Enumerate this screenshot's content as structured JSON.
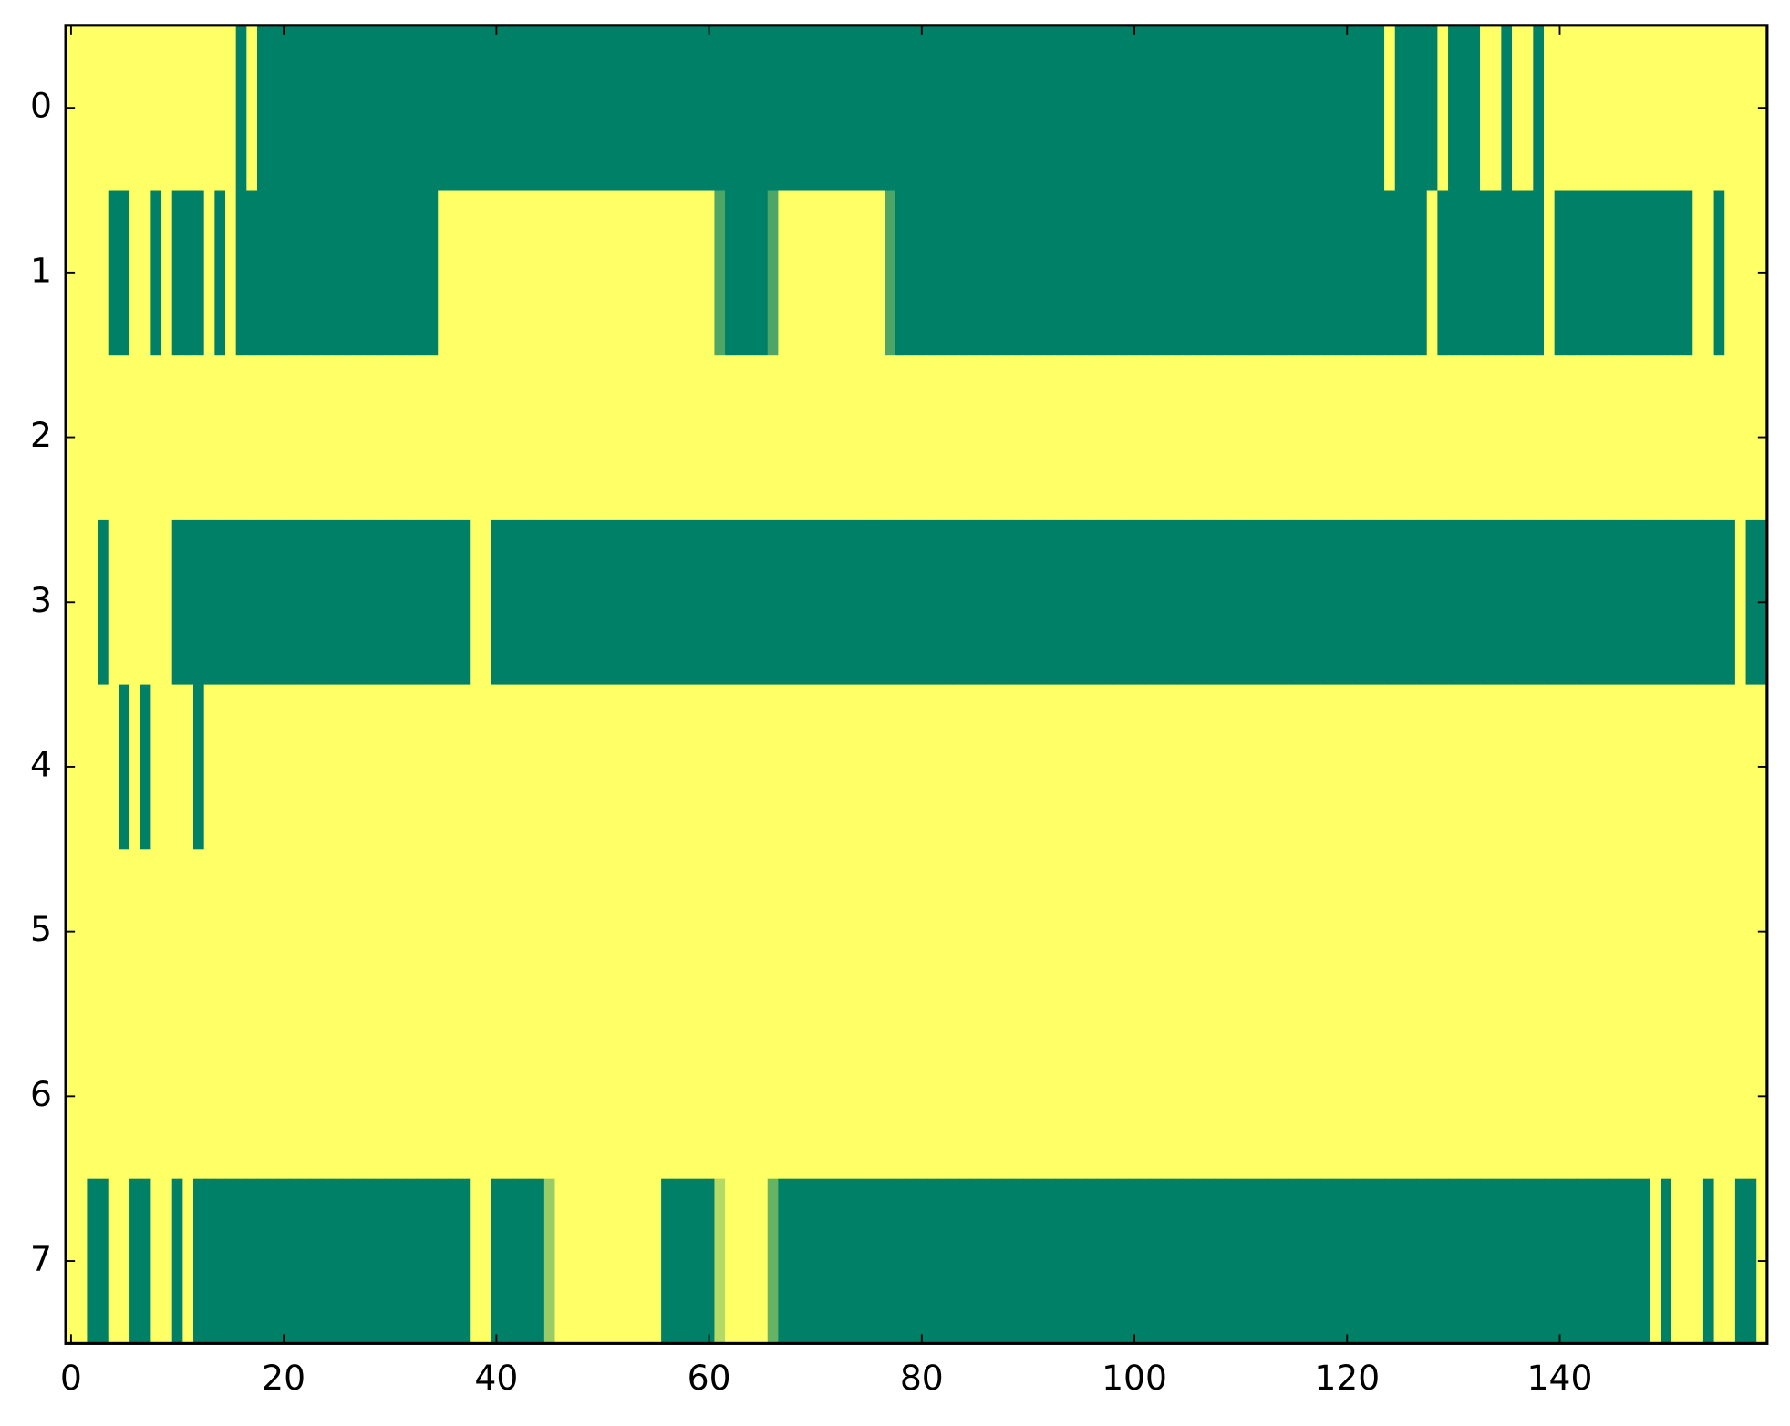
{
  "chart_data": {
    "type": "heatmap",
    "xlim": [
      -0.5,
      159.5
    ],
    "ylim": [
      7.5,
      -0.5
    ],
    "xticks": [
      0,
      20,
      40,
      60,
      80,
      100,
      120,
      140
    ],
    "yticks": [
      0,
      1,
      2,
      3,
      4,
      5,
      6,
      7
    ],
    "color_low": "#008066",
    "color_high": "#ffff66",
    "values": [
      [
        1,
        1,
        1,
        1,
        1,
        1,
        1,
        1,
        1,
        1,
        1,
        1,
        1,
        1,
        1,
        1,
        0,
        1,
        0,
        0,
        0,
        0,
        0,
        0,
        0,
        0,
        0,
        0,
        0,
        0,
        0,
        0,
        0,
        0,
        0,
        0,
        0,
        0,
        0,
        0,
        0,
        0,
        0,
        0,
        0,
        0,
        0,
        0,
        0,
        0,
        0,
        0,
        0,
        0,
        0,
        0,
        0,
        0,
        0,
        0,
        0,
        0,
        0,
        0,
        0,
        0,
        0,
        0,
        0,
        0,
        0,
        0,
        0,
        0,
        0,
        0,
        0,
        0,
        0,
        0,
        0,
        0,
        0,
        0,
        0,
        0,
        0,
        0,
        0,
        0,
        0,
        0,
        0,
        0,
        0,
        0,
        0,
        0,
        0,
        0,
        0,
        0,
        0,
        0,
        0,
        0,
        0,
        0,
        0,
        0,
        0,
        0,
        0,
        0,
        0,
        0,
        0,
        0,
        0,
        0,
        0,
        0,
        0,
        0,
        1,
        0,
        0,
        0,
        0,
        1,
        0,
        0,
        0,
        1,
        1,
        0,
        1,
        1,
        0,
        1,
        1,
        1,
        1,
        1,
        1,
        1,
        1,
        1,
        1,
        1,
        1,
        1,
        1,
        1,
        1,
        1,
        1,
        1,
        1,
        1
      ],
      [
        1,
        1,
        1,
        1,
        0,
        0,
        1,
        1,
        0,
        1,
        0,
        0,
        0,
        1,
        0,
        1,
        0,
        0,
        0,
        0,
        0,
        0,
        0,
        0,
        0,
        0,
        0,
        0,
        0,
        0,
        0,
        0,
        0,
        0,
        0,
        1,
        1,
        1,
        1,
        1,
        1,
        1,
        1,
        1,
        1,
        1,
        1,
        1,
        1,
        1,
        1,
        1,
        1,
        1,
        1,
        1,
        1,
        1,
        1,
        1,
        1,
        0.3,
        0,
        0,
        0,
        0,
        0.3,
        1,
        1,
        1,
        1,
        1,
        1,
        1,
        1,
        1,
        1,
        0.3,
        0,
        0,
        0,
        0,
        0,
        0,
        0,
        0,
        0,
        0,
        0,
        0,
        0,
        0,
        0,
        0,
        0,
        0,
        0,
        0,
        0,
        0,
        0,
        0,
        0,
        0,
        0,
        0,
        0,
        0,
        0,
        0,
        0,
        0,
        0,
        0,
        0,
        0,
        0,
        0,
        0,
        0,
        0,
        0,
        0,
        0,
        0,
        0,
        0,
        0,
        1,
        0,
        0,
        0,
        0,
        0,
        0,
        0,
        0,
        0,
        0,
        1,
        0,
        0,
        0,
        0,
        0,
        0,
        0,
        0,
        0,
        0,
        0,
        0,
        0,
        1,
        1,
        0,
        1,
        1,
        1,
        1
      ],
      [
        1,
        1,
        1,
        1,
        1,
        1,
        1,
        1,
        1,
        1,
        1,
        1,
        1,
        1,
        1,
        1,
        1,
        1,
        1,
        1,
        1,
        1,
        1,
        1,
        1,
        1,
        1,
        1,
        1,
        1,
        1,
        1,
        1,
        1,
        1,
        1,
        1,
        1,
        1,
        1,
        1,
        1,
        1,
        1,
        1,
        1,
        1,
        1,
        1,
        1,
        1,
        1,
        1,
        1,
        1,
        1,
        1,
        1,
        1,
        1,
        1,
        1,
        1,
        1,
        1,
        1,
        1,
        1,
        1,
        1,
        1,
        1,
        1,
        1,
        1,
        1,
        1,
        1,
        1,
        1,
        1,
        1,
        1,
        1,
        1,
        1,
        1,
        1,
        1,
        1,
        1,
        1,
        1,
        1,
        1,
        1,
        1,
        1,
        1,
        1,
        1,
        1,
        1,
        1,
        1,
        1,
        1,
        1,
        1,
        1,
        1,
        1,
        1,
        1,
        1,
        1,
        1,
        1,
        1,
        1,
        1,
        1,
        1,
        1,
        1,
        1,
        1,
        1,
        1,
        1,
        1,
        1,
        1,
        1,
        1,
        1,
        1,
        1,
        1,
        1,
        1,
        1,
        1,
        1,
        1,
        1,
        1,
        1,
        1,
        1,
        1,
        1,
        1,
        1,
        1,
        1,
        1,
        1,
        1,
        1
      ],
      [
        1,
        1,
        1,
        0,
        1,
        1,
        1,
        1,
        1,
        1,
        0,
        0,
        0,
        0,
        0,
        0,
        0,
        0,
        0,
        0,
        0,
        0,
        0,
        0,
        0,
        0,
        0,
        0,
        0,
        0,
        0,
        0,
        0,
        0,
        0,
        0,
        0,
        0,
        1,
        1,
        0,
        0,
        0,
        0,
        0,
        0,
        0,
        0,
        0,
        0,
        0,
        0,
        0,
        0,
        0,
        0,
        0,
        0,
        0,
        0,
        0,
        0,
        0,
        0,
        0,
        0,
        0,
        0,
        0,
        0,
        0,
        0,
        0,
        0,
        0,
        0,
        0,
        0,
        0,
        0,
        0,
        0,
        0,
        0,
        0,
        0,
        0,
        0,
        0,
        0,
        0,
        0,
        0,
        0,
        0,
        0,
        0,
        0,
        0,
        0,
        0,
        0,
        0,
        0,
        0,
        0,
        0,
        0,
        0,
        0,
        0,
        0,
        0,
        0,
        0,
        0,
        0,
        0,
        0,
        0,
        0,
        0,
        0,
        0,
        0,
        0,
        0,
        0,
        0,
        0,
        0,
        0,
        0,
        0,
        0,
        0,
        0,
        0,
        0,
        0,
        0,
        0,
        0,
        0,
        0,
        0,
        0,
        0,
        0,
        0,
        0,
        0,
        0,
        0,
        0,
        0,
        0,
        1,
        0,
        0
      ],
      [
        1,
        1,
        1,
        1,
        1,
        0,
        1,
        0,
        1,
        1,
        1,
        1,
        0,
        1,
        1,
        1,
        1,
        1,
        1,
        1,
        1,
        1,
        1,
        1,
        1,
        1,
        1,
        1,
        1,
        1,
        1,
        1,
        1,
        1,
        1,
        1,
        1,
        1,
        1,
        1,
        1,
        1,
        1,
        1,
        1,
        1,
        1,
        1,
        1,
        1,
        1,
        1,
        1,
        1,
        1,
        1,
        1,
        1,
        1,
        1,
        1,
        1,
        1,
        1,
        1,
        1,
        1,
        1,
        1,
        1,
        1,
        1,
        1,
        1,
        1,
        1,
        1,
        1,
        1,
        1,
        1,
        1,
        1,
        1,
        1,
        1,
        1,
        1,
        1,
        1,
        1,
        1,
        1,
        1,
        1,
        1,
        1,
        1,
        1,
        1,
        1,
        1,
        1,
        1,
        1,
        1,
        1,
        1,
        1,
        1,
        1,
        1,
        1,
        1,
        1,
        1,
        1,
        1,
        1,
        1,
        1,
        1,
        1,
        1,
        1,
        1,
        1,
        1,
        1,
        1,
        1,
        1,
        1,
        1,
        1,
        1,
        1,
        1,
        1,
        1,
        1,
        1,
        1,
        1,
        1,
        1,
        1,
        1,
        1,
        1,
        1,
        1,
        1,
        1,
        1,
        1,
        1,
        1,
        1,
        1
      ],
      [
        1,
        1,
        1,
        1,
        1,
        1,
        1,
        1,
        1,
        1,
        1,
        1,
        1,
        1,
        1,
        1,
        1,
        1,
        1,
        1,
        1,
        1,
        1,
        1,
        1,
        1,
        1,
        1,
        1,
        1,
        1,
        1,
        1,
        1,
        1,
        1,
        1,
        1,
        1,
        1,
        1,
        1,
        1,
        1,
        1,
        1,
        1,
        1,
        1,
        1,
        1,
        1,
        1,
        1,
        1,
        1,
        1,
        1,
        1,
        1,
        1,
        1,
        1,
        1,
        1,
        1,
        1,
        1,
        1,
        1,
        1,
        1,
        1,
        1,
        1,
        1,
        1,
        1,
        1,
        1,
        1,
        1,
        1,
        1,
        1,
        1,
        1,
        1,
        1,
        1,
        1,
        1,
        1,
        1,
        1,
        1,
        1,
        1,
        1,
        1,
        1,
        1,
        1,
        1,
        1,
        1,
        1,
        1,
        1,
        1,
        1,
        1,
        1,
        1,
        1,
        1,
        1,
        1,
        1,
        1,
        1,
        1,
        1,
        1,
        1,
        1,
        1,
        1,
        1,
        1,
        1,
        1,
        1,
        1,
        1,
        1,
        1,
        1,
        1,
        1,
        1,
        1,
        1,
        1,
        1,
        1,
        1,
        1,
        1,
        1,
        1,
        1,
        1,
        1,
        1,
        1,
        1,
        1,
        1,
        1
      ],
      [
        1,
        1,
        1,
        1,
        1,
        1,
        1,
        1,
        1,
        1,
        1,
        1,
        1,
        1,
        1,
        1,
        1,
        1,
        1,
        1,
        1,
        1,
        1,
        1,
        1,
        1,
        1,
        1,
        1,
        1,
        1,
        1,
        1,
        1,
        1,
        1,
        1,
        1,
        1,
        1,
        1,
        1,
        1,
        1,
        1,
        1,
        1,
        1,
        1,
        1,
        1,
        1,
        1,
        1,
        1,
        1,
        1,
        1,
        1,
        1,
        1,
        1,
        1,
        1,
        1,
        1,
        1,
        1,
        1,
        1,
        1,
        1,
        1,
        1,
        1,
        1,
        1,
        1,
        1,
        1,
        1,
        1,
        1,
        1,
        1,
        1,
        1,
        1,
        1,
        1,
        1,
        1,
        1,
        1,
        1,
        1,
        1,
        1,
        1,
        1,
        1,
        1,
        1,
        1,
        1,
        1,
        1,
        1,
        1,
        1,
        1,
        1,
        1,
        1,
        1,
        1,
        1,
        1,
        1,
        1,
        1,
        1,
        1,
        1,
        1,
        1,
        1,
        1,
        1,
        1,
        1,
        1,
        1,
        1,
        1,
        1,
        1,
        1,
        1,
        1,
        1,
        1,
        1,
        1,
        1,
        1,
        1,
        1,
        1,
        1,
        1,
        1,
        1,
        1,
        1,
        1,
        1,
        1,
        1,
        1
      ],
      [
        1,
        1,
        0,
        0,
        1,
        1,
        0,
        0,
        1,
        1,
        0,
        1,
        0,
        0,
        0,
        0,
        0,
        0,
        0,
        0,
        0,
        0,
        0,
        0,
        0,
        0,
        0,
        0,
        0,
        0,
        0,
        0,
        0,
        0,
        0,
        0,
        0,
        0,
        1,
        1,
        0,
        0,
        0,
        0,
        0,
        0.6,
        1,
        1,
        1,
        1,
        1,
        1,
        1,
        1,
        1,
        1,
        0,
        0,
        0,
        0,
        0,
        0.7,
        1,
        1,
        1,
        1,
        0.4,
        0,
        0,
        0,
        0,
        0,
        0,
        0,
        0,
        0,
        0,
        0,
        0,
        0,
        0,
        0,
        0,
        0,
        0,
        0,
        0,
        0,
        0,
        0,
        0,
        0,
        0,
        0,
        0,
        0,
        0,
        0,
        0,
        0,
        0,
        0,
        0,
        0,
        0,
        0,
        0,
        0,
        0,
        0,
        0,
        0,
        0,
        0,
        0,
        0,
        0,
        0,
        0,
        0,
        0,
        0,
        0,
        0,
        0,
        0,
        0,
        0,
        0,
        0,
        0,
        0,
        0,
        0,
        0,
        0,
        0,
        0,
        0,
        0,
        0,
        0,
        0,
        0,
        0,
        0,
        0,
        0,
        0,
        1,
        0,
        1,
        1,
        1,
        0,
        1,
        1,
        0,
        0,
        1
      ]
    ]
  }
}
